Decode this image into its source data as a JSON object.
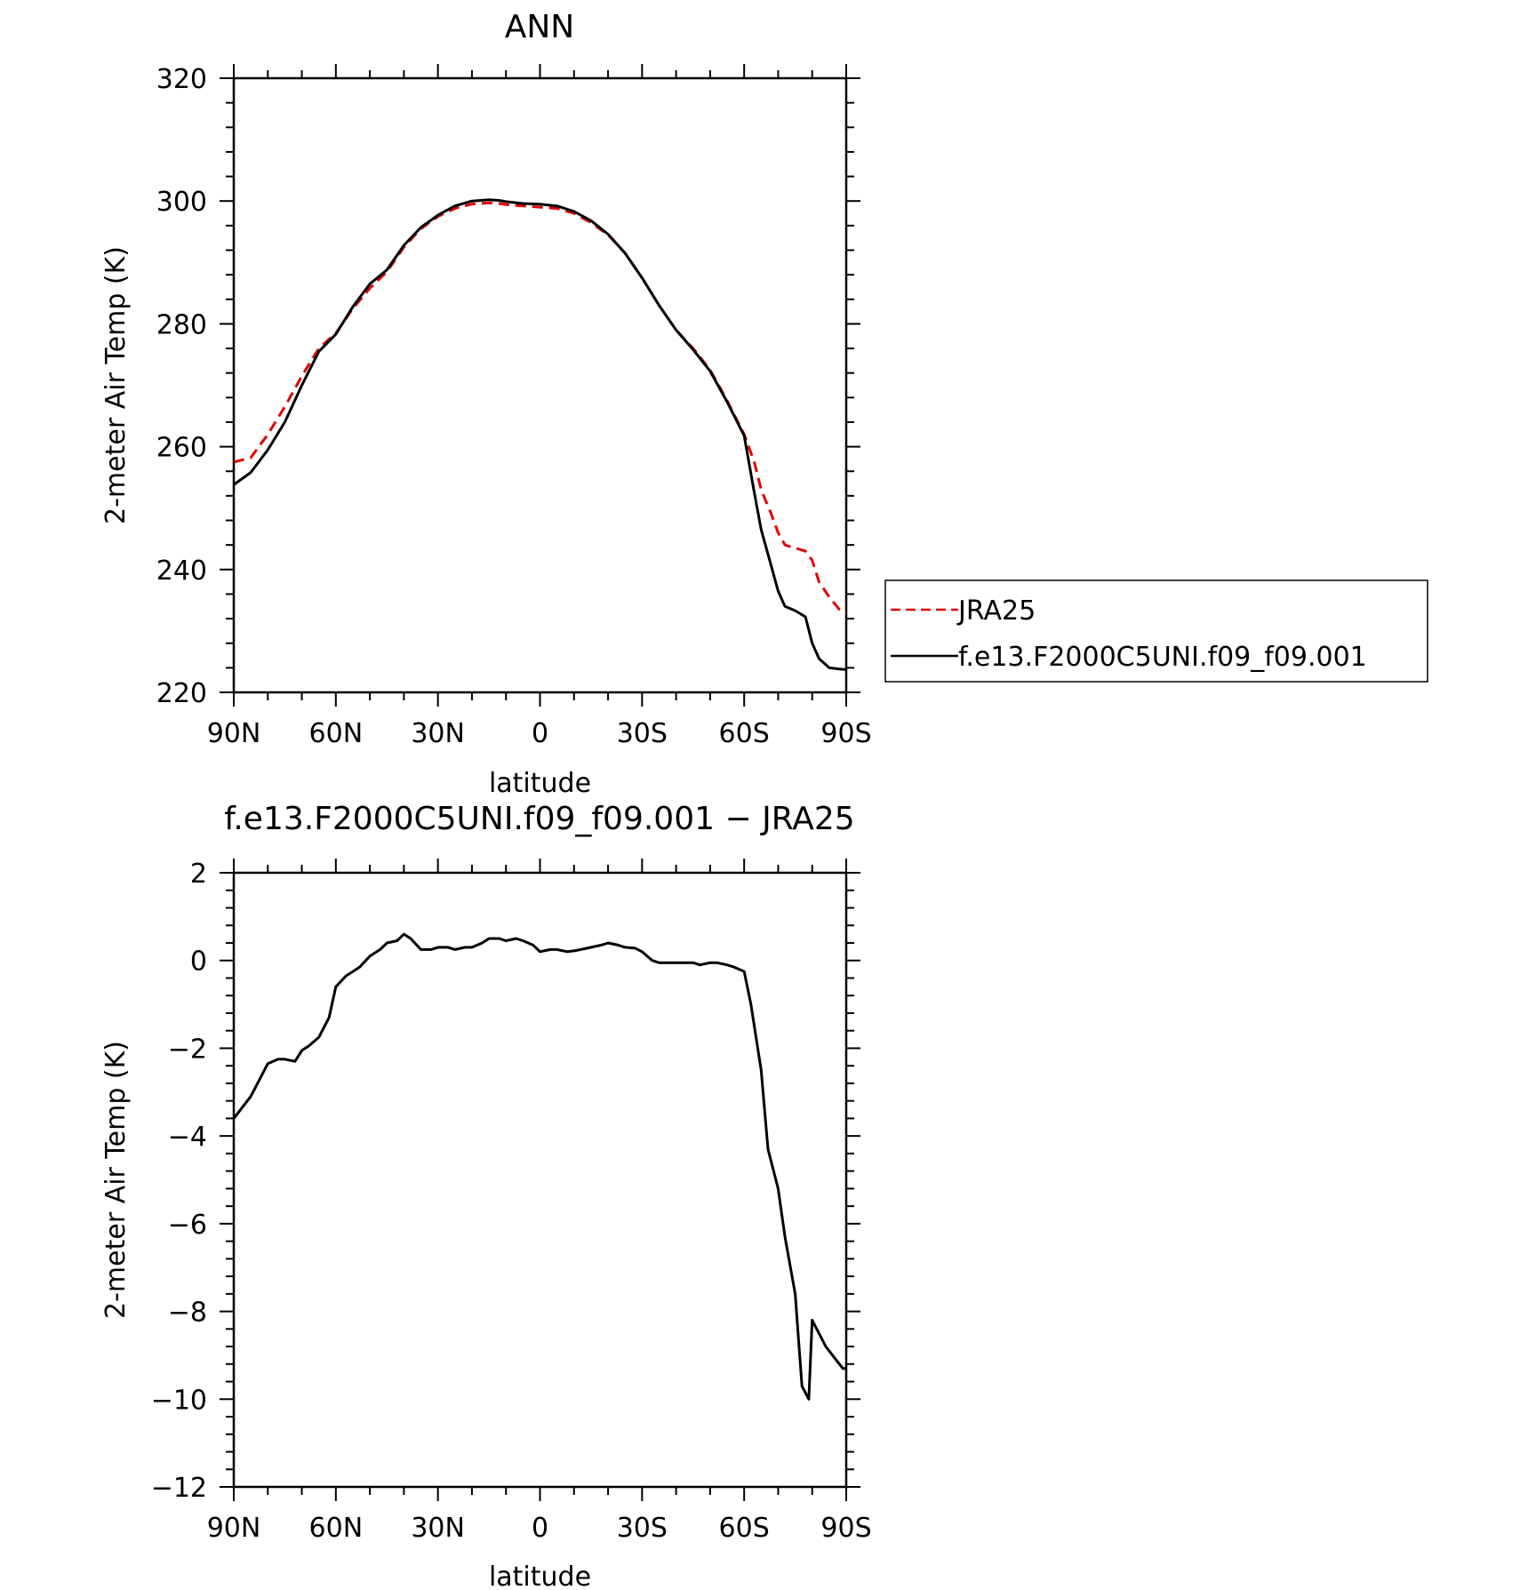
{
  "chart_data": [
    {
      "type": "line",
      "title": "ANN",
      "xlabel": "latitude",
      "ylabel": "2-meter Air Temp (K)",
      "xlim": [
        90,
        -90
      ],
      "ylim": [
        220,
        320
      ],
      "xticks": [
        90,
        60,
        30,
        0,
        -30,
        -60,
        -90
      ],
      "xtick_labels": [
        "90N",
        "60N",
        "30N",
        "0",
        "30S",
        "60S",
        "90S"
      ],
      "yticks": [
        220,
        240,
        260,
        280,
        300,
        320
      ],
      "ytick_labels": [
        "220",
        "240",
        "260",
        "280",
        "300",
        "320"
      ],
      "grid": false,
      "legend": "right",
      "series": [
        {
          "name": "JRA25",
          "color": "#e00000",
          "style": "dashed",
          "x": [
            90,
            85,
            80,
            75,
            70,
            65,
            60,
            55,
            50,
            45,
            40,
            35,
            30,
            25,
            20,
            15,
            12,
            10,
            5,
            0,
            -5,
            -10,
            -15,
            -20,
            -25,
            -30,
            -35,
            -40,
            -45,
            -50,
            -55,
            -60,
            -63,
            -65,
            -68,
            -70,
            -72,
            -75,
            -78,
            -80,
            -82,
            -85,
            -88,
            -90
          ],
          "y": [
            257.5,
            258.2,
            262.0,
            266.5,
            271.5,
            276.0,
            278.5,
            282.5,
            285.8,
            288.5,
            292.5,
            295.5,
            297.5,
            298.8,
            299.5,
            299.7,
            299.6,
            299.4,
            299.2,
            299.0,
            298.8,
            298.0,
            296.5,
            294.5,
            291.5,
            287.5,
            283.0,
            279.0,
            276.0,
            272.5,
            267.5,
            262.0,
            257.5,
            253.0,
            249.0,
            246.0,
            244.0,
            243.5,
            243.0,
            241.5,
            238.0,
            235.5,
            233.5,
            233.0
          ]
        },
        {
          "name": "f.e13.F2000C5UNI.f09_f09.001",
          "color": "#000000",
          "style": "solid",
          "x": [
            90,
            85,
            80,
            75,
            70,
            65,
            60,
            55,
            50,
            45,
            40,
            35,
            30,
            25,
            20,
            15,
            12,
            10,
            5,
            0,
            -5,
            -10,
            -15,
            -20,
            -25,
            -30,
            -35,
            -40,
            -45,
            -50,
            -55,
            -60,
            -63,
            -65,
            -68,
            -70,
            -72,
            -75,
            -78,
            -80,
            -82,
            -85,
            -88,
            -90
          ],
          "y": [
            253.8,
            255.8,
            259.5,
            264.0,
            270.0,
            275.5,
            278.3,
            282.8,
            286.5,
            288.8,
            292.8,
            295.7,
            297.7,
            299.2,
            300.0,
            300.2,
            300.1,
            299.9,
            299.6,
            299.5,
            299.2,
            298.3,
            296.8,
            294.6,
            291.5,
            287.5,
            283.0,
            279.0,
            275.8,
            272.3,
            267.3,
            261.8,
            252.5,
            246.5,
            240.5,
            236.5,
            234.0,
            233.3,
            232.3,
            228.0,
            225.5,
            224.0,
            223.8,
            223.7
          ]
        }
      ]
    },
    {
      "type": "line",
      "title": "f.e13.F2000C5UNI.f09_f09.001 − JRA25",
      "xlabel": "latitude",
      "ylabel": "2-meter Air Temp (K)",
      "xlim": [
        90,
        -90
      ],
      "ylim": [
        -12,
        2
      ],
      "xticks": [
        90,
        60,
        30,
        0,
        -30,
        -60,
        -90
      ],
      "xtick_labels": [
        "90N",
        "60N",
        "30N",
        "0",
        "30S",
        "60S",
        "90S"
      ],
      "yticks": [
        -12,
        -10,
        -8,
        -6,
        -4,
        -2,
        0,
        2
      ],
      "ytick_labels": [
        "−12",
        "−10",
        "−8",
        "−6",
        "−4",
        "−2",
        "0",
        "2"
      ],
      "grid": false,
      "series": [
        {
          "color": "#000000",
          "style": "solid",
          "x": [
            90,
            85,
            80,
            77,
            75,
            72,
            70,
            68,
            65,
            62,
            60,
            57,
            55,
            53,
            50,
            47,
            45,
            42,
            40,
            38,
            35,
            32,
            30,
            27,
            25,
            22,
            20,
            17,
            15,
            12,
            10,
            7,
            5,
            2,
            0,
            -3,
            -5,
            -8,
            -10,
            -12,
            -15,
            -18,
            -20,
            -23,
            -25,
            -28,
            -30,
            -33,
            -35,
            -37,
            -40,
            -42,
            -45,
            -47,
            -50,
            -52,
            -55,
            -57,
            -60,
            -62,
            -65,
            -67,
            -70,
            -72,
            -75,
            -77,
            -79,
            -80,
            -82,
            -84,
            -87,
            -89,
            -90
          ],
          "y": [
            -3.6,
            -3.1,
            -2.35,
            -2.25,
            -2.25,
            -2.3,
            -2.05,
            -1.95,
            -1.75,
            -1.3,
            -0.6,
            -0.35,
            -0.25,
            -0.15,
            0.1,
            0.25,
            0.4,
            0.45,
            0.6,
            0.5,
            0.25,
            0.25,
            0.3,
            0.3,
            0.25,
            0.3,
            0.3,
            0.4,
            0.5,
            0.5,
            0.45,
            0.5,
            0.45,
            0.35,
            0.2,
            0.25,
            0.25,
            0.2,
            0.22,
            0.25,
            0.3,
            0.35,
            0.4,
            0.35,
            0.3,
            0.28,
            0.2,
            0.0,
            -0.05,
            -0.05,
            -0.05,
            -0.05,
            -0.05,
            -0.1,
            -0.05,
            -0.05,
            -0.1,
            -0.15,
            -0.25,
            -1.0,
            -2.5,
            -4.3,
            -5.2,
            -6.3,
            -7.6,
            -9.7,
            -10.0,
            -8.2,
            -8.5,
            -8.8,
            -9.1,
            -9.3,
            -9.3
          ]
        }
      ]
    }
  ],
  "legend": {
    "items": [
      {
        "label": "JRA25",
        "color": "#e00000",
        "style": "dashed"
      },
      {
        "label": "f.e13.F2000C5UNI.f09_f09.001",
        "color": "#000000",
        "style": "solid"
      }
    ]
  }
}
